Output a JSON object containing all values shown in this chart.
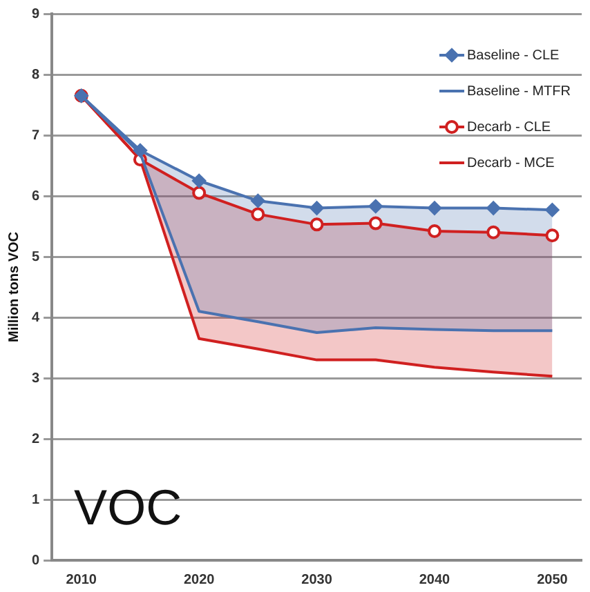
{
  "chart_data": {
    "type": "line",
    "ylabel": "Million tons VOC",
    "categories": [
      "2010",
      null,
      "2020",
      null,
      "2030",
      null,
      "2040",
      null,
      "2050"
    ],
    "series": [
      {
        "name": "Baseline - CLE",
        "color": "#4a72b0",
        "marker": "diamond",
        "values": [
          7.65,
          6.75,
          6.25,
          5.92,
          5.8,
          5.83,
          5.8,
          5.8,
          5.77
        ],
        "lower": [
          7.65,
          6.7,
          4.1,
          3.93,
          3.75,
          3.83,
          3.8,
          3.78,
          3.78
        ],
        "upper": [
          7.65,
          6.75,
          6.25,
          5.92,
          5.8,
          5.83,
          5.8,
          5.8,
          5.77
        ]
      },
      {
        "name": "Baseline - MTFR",
        "color": "#4a72b0",
        "marker": "none",
        "values": [
          7.65,
          6.7,
          4.1,
          3.93,
          3.75,
          3.83,
          3.8,
          3.78,
          3.78
        ]
      },
      {
        "name": "Decarb - CLE",
        "color": "#d02020",
        "marker": "circle",
        "values": [
          7.65,
          6.6,
          6.05,
          5.7,
          5.53,
          5.55,
          5.42,
          5.4,
          5.35
        ],
        "lower": [
          7.65,
          6.6,
          3.65,
          3.48,
          3.3,
          3.3,
          3.18,
          3.1,
          3.03
        ],
        "upper": [
          7.65,
          6.6,
          6.05,
          5.7,
          5.53,
          5.55,
          5.42,
          5.4,
          5.35
        ]
      },
      {
        "name": "Decarb - MCE",
        "color": "#d02020",
        "marker": "none",
        "values": [
          7.65,
          6.6,
          3.65,
          3.48,
          3.3,
          3.3,
          3.18,
          3.1,
          3.03
        ]
      }
    ],
    "ylim": [
      0,
      9
    ],
    "yticks": [
      0,
      1,
      2,
      3,
      4,
      5,
      6,
      7,
      8,
      9
    ],
    "grid": "y",
    "legend": "top right",
    "annotations": [
      "VOC"
    ]
  }
}
